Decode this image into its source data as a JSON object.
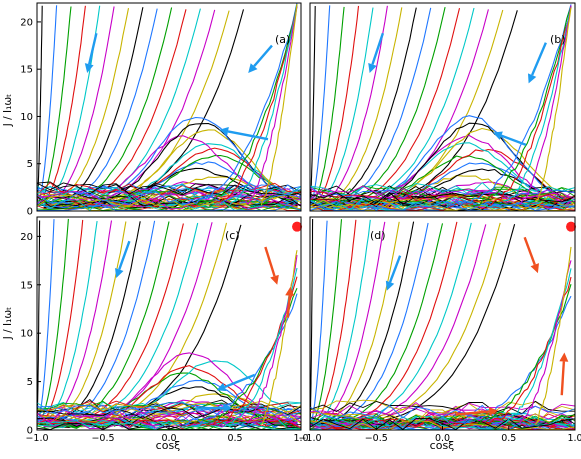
{
  "figure": {
    "shared_ylabel": "J / I₁ωₜ",
    "shared_xlabel": "cosξ"
  },
  "chart_data": [
    {
      "type": "line",
      "panel_label": "(a)",
      "xlim": [
        -1.0,
        1.0
      ],
      "ylim": [
        0,
        22
      ],
      "ylabel": "J / I₁ωₜ",
      "xlabel": "",
      "yticks": [
        0,
        5,
        10,
        15,
        20
      ],
      "xticks": [],
      "grid": false,
      "trajectory_colors": [
        "#000000",
        "#1f77ff",
        "#00a000",
        "#e01010",
        "#00c8c8",
        "#c800c8",
        "#c8b400"
      ],
      "arrows": [
        {
          "color": "#1f9cf0",
          "from": [
            -0.55,
            18.8
          ],
          "to": [
            -0.62,
            14.6
          ]
        },
        {
          "color": "#1f9cf0",
          "from": [
            0.78,
            17.5
          ],
          "to": [
            0.6,
            14.6
          ]
        },
        {
          "color": "#1f9cf0",
          "from": [
            0.75,
            7.6
          ],
          "to": [
            0.38,
            8.6
          ]
        }
      ],
      "markers": []
    },
    {
      "type": "line",
      "panel_label": "(b)",
      "xlim": [
        -1.0,
        1.0
      ],
      "ylim": [
        0,
        22
      ],
      "ylabel": "",
      "xlabel": "",
      "yticks": [],
      "xticks": [],
      "grid": false,
      "trajectory_colors": [
        "#000000",
        "#1f77ff",
        "#00a000",
        "#e01010",
        "#00c8c8",
        "#c800c8",
        "#c8b400"
      ],
      "arrows": [
        {
          "color": "#1f9cf0",
          "from": [
            -0.45,
            18.8
          ],
          "to": [
            -0.55,
            14.6
          ]
        },
        {
          "color": "#1f9cf0",
          "from": [
            0.78,
            17.8
          ],
          "to": [
            0.65,
            13.5
          ]
        },
        {
          "color": "#1f9cf0",
          "from": [
            0.63,
            7.0
          ],
          "to": [
            0.38,
            8.3
          ]
        }
      ],
      "markers": []
    },
    {
      "type": "line",
      "panel_label": "(c)",
      "xlim": [
        -1.0,
        1.0
      ],
      "ylim": [
        0,
        22
      ],
      "ylabel": "J / I₁ωₜ",
      "xlabel": "cosξ",
      "yticks": [
        0,
        5,
        10,
        15,
        20
      ],
      "xticks": [
        "−1.0",
        "−0.5",
        "0.0",
        "0.5",
        "1.0"
      ],
      "grid": false,
      "trajectory_colors": [
        "#000000",
        "#1f77ff",
        "#00a000",
        "#e01010",
        "#00c8c8",
        "#c800c8",
        "#c8b400"
      ],
      "arrows": [
        {
          "color": "#1f9cf0",
          "from": [
            -0.3,
            19.5
          ],
          "to": [
            -0.4,
            15.7
          ]
        },
        {
          "color": "#1f9cf0",
          "from": [
            0.65,
            5.7
          ],
          "to": [
            0.36,
            4.1
          ]
        },
        {
          "color": "#1f9cf0",
          "from": [
            0.2,
            2.2
          ],
          "to": [
            0.48,
            2.3
          ]
        },
        {
          "color": "#f05020",
          "from": [
            0.73,
            18.9
          ],
          "to": [
            0.82,
            15.0
          ]
        },
        {
          "color": "#f05020",
          "from": [
            0.9,
            11.6
          ],
          "to": [
            0.92,
            14.8
          ]
        }
      ],
      "markers": [
        {
          "color": "#ff2020",
          "x": 0.97,
          "y": 21.0
        }
      ]
    },
    {
      "type": "line",
      "panel_label": "(d)",
      "xlim": [
        -1.0,
        1.0
      ],
      "ylim": [
        0,
        22
      ],
      "ylabel": "",
      "xlabel": "cosξ",
      "yticks": [],
      "xticks": [
        "−1.0",
        "−0.5",
        "0.0",
        "0.5",
        "1.0"
      ],
      "grid": false,
      "trajectory_colors": [
        "#000000",
        "#1f77ff",
        "#00a000",
        "#e01010",
        "#00c8c8",
        "#c800c8",
        "#c8b400"
      ],
      "arrows": [
        {
          "color": "#1f9cf0",
          "from": [
            -0.32,
            18.0
          ],
          "to": [
            -0.42,
            14.4
          ]
        },
        {
          "color": "#f05020",
          "from": [
            0.62,
            19.9
          ],
          "to": [
            0.72,
            16.2
          ]
        },
        {
          "color": "#f05020",
          "from": [
            0.9,
            3.6
          ],
          "to": [
            0.92,
            8.0
          ]
        },
        {
          "color": "#f05020",
          "from": [
            0.1,
            1.6
          ],
          "to": [
            0.42,
            2.0
          ]
        }
      ],
      "markers": [
        {
          "color": "#ff2020",
          "x": 0.97,
          "y": 21.0
        }
      ]
    }
  ]
}
